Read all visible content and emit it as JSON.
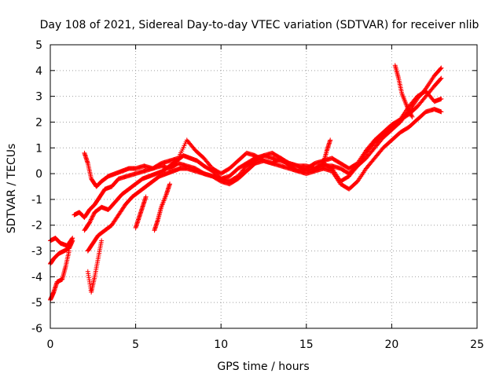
{
  "chart_data": {
    "type": "scatter",
    "title": "Day 108 of 2021, Sidereal Day-to-day VTEC variation (SDTVAR) for receiver nlib",
    "xlabel": "GPS time / hours",
    "ylabel": "SDTVAR / TECUs",
    "xlim": [
      0,
      25
    ],
    "ylim": [
      -6,
      5
    ],
    "xticks": [
      0,
      5,
      10,
      15,
      20,
      25
    ],
    "yticks": [
      -6,
      -5,
      -4,
      -3,
      -2,
      -1,
      0,
      1,
      2,
      3,
      4,
      5
    ],
    "grid": true,
    "marker": "plus",
    "color": "#ff0000",
    "series": [
      {
        "x": [
          0.0,
          0.3,
          0.6,
          1.0,
          1.3
        ],
        "y": [
          -2.6,
          -2.5,
          -2.7,
          -2.8,
          -2.5
        ]
      },
      {
        "x": [
          0.0,
          0.2,
          0.5,
          0.8,
          1.1,
          1.3
        ],
        "y": [
          -3.5,
          -3.3,
          -3.1,
          -3.0,
          -2.9,
          -2.6
        ]
      },
      {
        "x": [
          0.0,
          0.2,
          0.4,
          0.7,
          0.9,
          1.1
        ],
        "y": [
          -4.9,
          -4.6,
          -4.2,
          -4.1,
          -3.6,
          -3.0
        ]
      },
      {
        "x": [
          1.4,
          1.7,
          2.0,
          2.3,
          2.6,
          2.9,
          3.2,
          3.6,
          4.0,
          4.5,
          5.0,
          5.5,
          6.0,
          6.5,
          7.0,
          7.5,
          8.0,
          8.5,
          9.0,
          9.5,
          10.0,
          10.5,
          11.0,
          11.5,
          12.0,
          12.5,
          13.0,
          13.5,
          14.0,
          14.5,
          15.0,
          15.5,
          16.0,
          16.5,
          17.0,
          17.5,
          18.0,
          18.5,
          19.0,
          19.5,
          20.0,
          20.5,
          21.0,
          21.5,
          22.0,
          22.5,
          22.9
        ],
        "y": [
          -1.6,
          -1.5,
          -1.7,
          -1.4,
          -1.2,
          -0.9,
          -0.6,
          -0.5,
          -0.2,
          -0.1,
          0.0,
          0.1,
          0.2,
          0.3,
          0.2,
          0.4,
          0.3,
          0.2,
          0.0,
          -0.1,
          -0.2,
          -0.1,
          0.2,
          0.4,
          0.6,
          0.7,
          0.6,
          0.5,
          0.4,
          0.3,
          0.3,
          0.2,
          0.3,
          0.3,
          0.2,
          0.0,
          0.3,
          0.6,
          1.0,
          1.4,
          1.7,
          2.0,
          2.4,
          2.9,
          3.3,
          3.8,
          4.1
        ]
      },
      {
        "x": [
          2.0,
          2.2,
          2.4,
          2.7,
          3.0,
          3.4,
          3.8,
          4.2,
          4.6,
          5.0,
          5.5,
          6.0,
          6.5,
          7.0,
          7.5,
          8.0,
          8.5,
          9.0,
          9.5,
          10.0,
          10.5,
          11.0,
          11.5,
          12.0,
          12.5,
          13.0,
          13.5,
          14.0,
          14.5,
          15.0,
          15.5,
          16.0,
          16.5,
          17.0,
          17.5,
          18.0,
          18.5,
          19.0,
          19.5,
          20.0,
          20.5,
          21.0,
          21.5,
          22.0,
          22.5,
          22.9
        ],
        "y": [
          0.8,
          0.4,
          -0.2,
          -0.5,
          -0.3,
          -0.1,
          0.0,
          0.1,
          0.2,
          0.2,
          0.3,
          0.2,
          0.4,
          0.5,
          0.6,
          1.3,
          0.9,
          0.6,
          0.2,
          0.0,
          0.2,
          0.5,
          0.8,
          0.7,
          0.5,
          0.4,
          0.6,
          0.3,
          0.1,
          0.2,
          0.4,
          0.5,
          0.6,
          0.4,
          0.2,
          0.4,
          0.9,
          1.3,
          1.6,
          1.9,
          2.1,
          2.3,
          2.6,
          3.0,
          3.4,
          3.7
        ]
      },
      {
        "x": [
          2.0,
          2.3,
          2.6,
          3.0,
          3.4,
          3.8,
          4.2,
          4.6,
          5.0,
          5.4,
          5.8,
          6.2,
          6.6,
          7.0,
          7.4,
          7.8,
          8.2,
          8.6,
          9.0,
          9.5,
          10.0,
          10.5,
          11.0,
          11.5,
          12.0,
          12.5,
          13.0,
          13.5,
          14.0,
          14.5,
          15.0,
          15.5,
          16.0,
          16.5,
          17.0,
          17.5,
          18.0,
          18.5,
          19.0,
          19.5,
          20.0,
          20.5,
          21.0,
          21.5,
          22.0,
          22.5,
          22.9
        ],
        "y": [
          -2.2,
          -1.9,
          -1.5,
          -1.3,
          -1.4,
          -1.1,
          -0.8,
          -0.6,
          -0.4,
          -0.2,
          -0.1,
          0.0,
          0.1,
          0.3,
          0.5,
          0.7,
          0.6,
          0.5,
          0.3,
          0.1,
          -0.2,
          -0.3,
          -0.1,
          0.3,
          0.5,
          0.7,
          0.8,
          0.6,
          0.4,
          0.3,
          0.1,
          0.2,
          0.4,
          0.2,
          -0.3,
          -0.1,
          0.3,
          0.8,
          1.2,
          1.5,
          1.8,
          2.1,
          2.6,
          3.0,
          3.2,
          2.8,
          2.9
        ]
      },
      {
        "x": [
          2.2,
          2.5,
          2.8,
          3.2,
          3.6,
          4.0,
          4.4,
          4.8,
          5.2,
          5.6,
          6.0,
          6.4,
          6.8,
          7.2,
          7.6,
          8.0,
          8.5,
          9.0,
          9.5,
          10.0,
          10.5,
          11.0,
          11.5,
          12.0,
          12.5,
          13.0,
          13.5,
          14.0,
          14.5,
          15.0,
          15.5,
          16.0,
          16.5,
          17.0,
          17.5,
          18.0,
          18.5,
          19.0,
          19.5,
          20.0,
          20.5,
          21.0,
          21.5,
          22.0,
          22.5,
          22.9
        ],
        "y": [
          -3.0,
          -2.7,
          -2.4,
          -2.2,
          -2.0,
          -1.6,
          -1.2,
          -0.9,
          -0.7,
          -0.5,
          -0.3,
          -0.1,
          0.0,
          0.1,
          0.2,
          0.2,
          0.1,
          0.0,
          -0.1,
          -0.3,
          -0.4,
          -0.2,
          0.1,
          0.4,
          0.5,
          0.4,
          0.3,
          0.2,
          0.1,
          0.0,
          0.1,
          0.2,
          0.1,
          -0.4,
          -0.6,
          -0.3,
          0.2,
          0.6,
          1.0,
          1.3,
          1.6,
          1.8,
          2.1,
          2.4,
          2.5,
          2.4
        ]
      },
      {
        "x": [
          2.2,
          2.4,
          2.6,
          2.8,
          3.0
        ],
        "y": [
          -3.8,
          -4.6,
          -4.0,
          -3.3,
          -2.6
        ]
      },
      {
        "x": [
          5.0,
          5.2,
          5.4,
          5.6
        ],
        "y": [
          -2.1,
          -1.7,
          -1.3,
          -0.9
        ]
      },
      {
        "x": [
          6.1,
          6.3,
          6.5,
          6.8,
          7.0
        ],
        "y": [
          -2.2,
          -1.8,
          -1.3,
          -0.8,
          -0.4
        ]
      },
      {
        "x": [
          20.2,
          20.4,
          20.6,
          20.9,
          21.2
        ],
        "y": [
          4.2,
          3.7,
          3.1,
          2.6,
          2.2
        ]
      },
      {
        "x": [
          16.0,
          16.2,
          16.4
        ],
        "y": [
          0.4,
          0.9,
          1.3
        ]
      }
    ]
  }
}
